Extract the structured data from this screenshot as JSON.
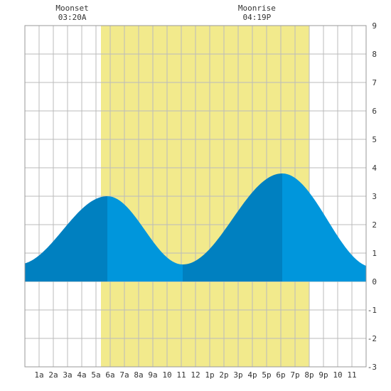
{
  "chart_data": {
    "type": "area",
    "title": "",
    "xlabel": "",
    "ylabel": "",
    "xlim": [
      0,
      24
    ],
    "ylim": [
      -3,
      9
    ],
    "grid": true,
    "x_ticks": [
      {
        "x": 1,
        "label": "1a"
      },
      {
        "x": 2,
        "label": "2a"
      },
      {
        "x": 3,
        "label": "3a"
      },
      {
        "x": 4,
        "label": "4a"
      },
      {
        "x": 5,
        "label": "5a"
      },
      {
        "x": 6,
        "label": "6a"
      },
      {
        "x": 7,
        "label": "7a"
      },
      {
        "x": 8,
        "label": "8a"
      },
      {
        "x": 9,
        "label": "9a"
      },
      {
        "x": 10,
        "label": "10"
      },
      {
        "x": 11,
        "label": "11"
      },
      {
        "x": 12,
        "label": "12"
      },
      {
        "x": 13,
        "label": "1p"
      },
      {
        "x": 14,
        "label": "2p"
      },
      {
        "x": 15,
        "label": "3p"
      },
      {
        "x": 16,
        "label": "4p"
      },
      {
        "x": 17,
        "label": "5p"
      },
      {
        "x": 18,
        "label": "6p"
      },
      {
        "x": 19,
        "label": "7p"
      },
      {
        "x": 20,
        "label": "8p"
      },
      {
        "x": 21,
        "label": "9p"
      },
      {
        "x": 22,
        "label": "10"
      },
      {
        "x": 23,
        "label": "11"
      }
    ],
    "y_ticks": [
      -3,
      -2,
      -1,
      0,
      1,
      2,
      3,
      4,
      5,
      6,
      7,
      8,
      9
    ],
    "daylight": {
      "start": 5.35,
      "end": 20.0
    },
    "annotations": [
      {
        "x": 3.33,
        "line1": "Moonset",
        "line2": "03:20A"
      },
      {
        "x": 16.32,
        "line1": "Moonrise",
        "line2": "04:19P"
      }
    ],
    "tide_extremes": [
      {
        "x": -0.5,
        "y": 0.6
      },
      {
        "x": 5.8,
        "y": 3.0
      },
      {
        "x": 11.1,
        "y": 0.6
      },
      {
        "x": 18.1,
        "y": 3.8
      },
      {
        "x": 24.5,
        "y": 0.5
      }
    ],
    "shade_boundaries": [
      5.8,
      11.1,
      18.1
    ],
    "colors": {
      "daylight": "#f2ea8c",
      "grid": "#bbbbbb",
      "rising": "#0080c0",
      "falling": "#0096dc",
      "border": "#999999"
    }
  }
}
